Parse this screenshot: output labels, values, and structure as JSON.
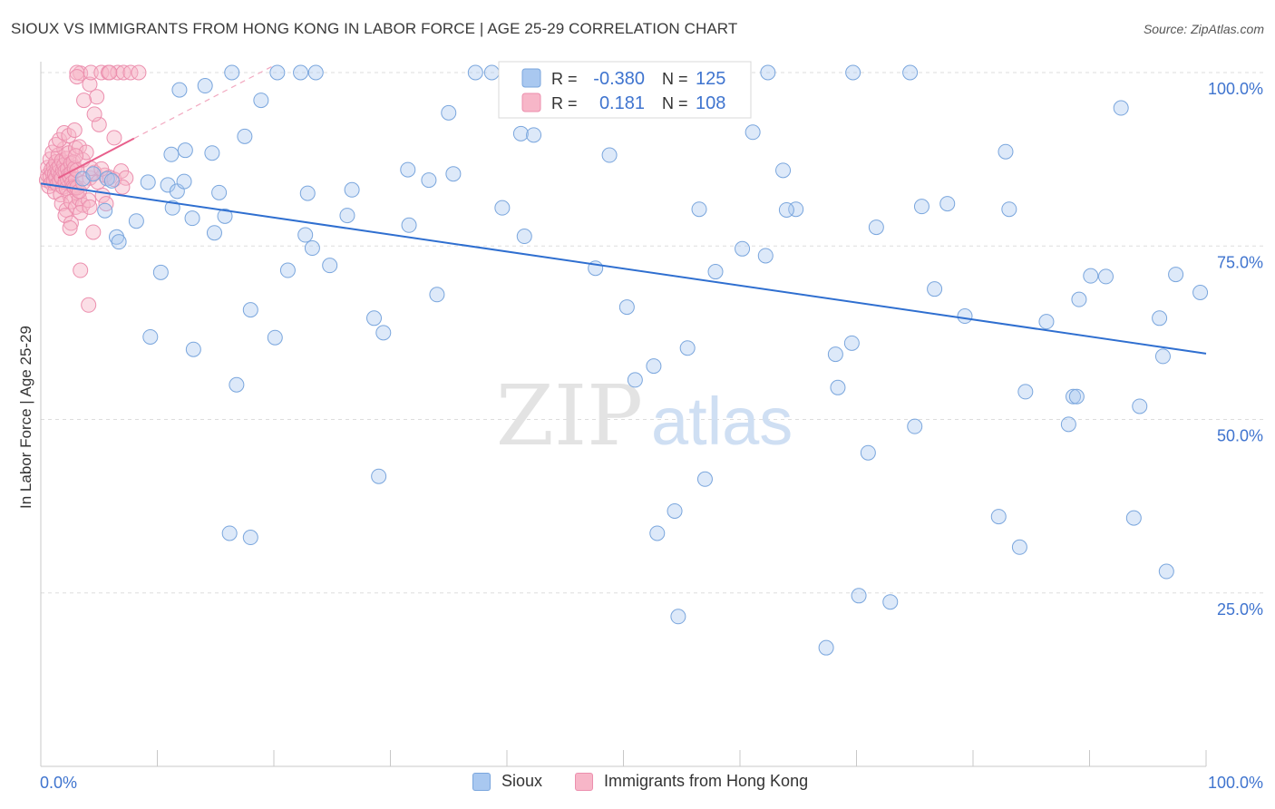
{
  "header": {
    "title": "SIOUX VS IMMIGRANTS FROM HONG KONG IN LABOR FORCE | AGE 25-29 CORRELATION CHART",
    "source": "Source: ZipAtlas.com"
  },
  "watermark": {
    "zip": "ZIP",
    "atlas": "atlas"
  },
  "colors": {
    "sioux_fill": "#a9c8f0",
    "sioux_stroke": "#7aa6dd",
    "sioux_line": "#2f6fd0",
    "hk_fill": "#f7b6c8",
    "hk_stroke": "#ec8fae",
    "hk_line": "#e8608c",
    "tick_label": "#3f74cf",
    "grid": "#dddddd"
  },
  "legend_top": {
    "rows": [
      {
        "r_label": "R =",
        "r_value": "-0.380",
        "n_label": "N =",
        "n_value": "125"
      },
      {
        "r_label": "R =",
        "r_value": "0.181",
        "n_label": "N =",
        "n_value": "108"
      }
    ]
  },
  "legend_bottom": {
    "sioux": "Sioux",
    "hk": "Immigrants from Hong Kong"
  },
  "chart_data": {
    "type": "scatter",
    "xlabel": "",
    "ylabel": "In Labor Force | Age 25-29",
    "xlim": [
      0,
      100
    ],
    "ylim": [
      0,
      105
    ],
    "x_tick_labels": [
      "0.0%",
      "100.0%"
    ],
    "y_tick_labels": [
      "25.0%",
      "50.0%",
      "75.0%",
      "100.0%"
    ],
    "y_ticks": [
      25,
      50,
      75,
      100
    ],
    "grid": true,
    "series": [
      {
        "name": "Sioux",
        "r": -0.38,
        "n": 125,
        "trend": {
          "x": [
            0,
            100
          ],
          "y": [
            84.0,
            59.5
          ]
        },
        "points": [
          [
            3.6,
            84.7
          ],
          [
            4.5,
            85.4
          ],
          [
            5.7,
            84.7
          ],
          [
            6.1,
            84.4
          ],
          [
            9.2,
            84.2
          ],
          [
            10.9,
            83.8
          ],
          [
            11.7,
            82.9
          ],
          [
            12.3,
            84.3
          ],
          [
            15.3,
            82.7
          ],
          [
            5.5,
            80.1
          ],
          [
            8.2,
            78.6
          ],
          [
            11.3,
            80.5
          ],
          [
            13.0,
            79.0
          ],
          [
            14.9,
            76.9
          ],
          [
            15.8,
            79.3
          ],
          [
            6.5,
            76.3
          ],
          [
            6.7,
            75.6
          ],
          [
            9.4,
            61.9
          ],
          [
            10.3,
            71.2
          ],
          [
            13.1,
            60.1
          ],
          [
            16.8,
            55.0
          ],
          [
            16.2,
            33.6
          ],
          [
            18.0,
            33.0
          ],
          [
            18.0,
            65.8
          ],
          [
            20.1,
            61.8
          ],
          [
            21.2,
            71.5
          ],
          [
            22.7,
            76.6
          ],
          [
            23.3,
            74.7
          ],
          [
            24.8,
            72.2
          ],
          [
            22.9,
            82.6
          ],
          [
            26.3,
            79.4
          ],
          [
            26.7,
            83.1
          ],
          [
            28.6,
            64.6
          ],
          [
            29.0,
            41.8
          ],
          [
            29.4,
            62.5
          ],
          [
            31.5,
            86.0
          ],
          [
            31.6,
            78.0
          ],
          [
            33.3,
            84.5
          ],
          [
            34.0,
            68.0
          ],
          [
            35.4,
            85.4
          ],
          [
            35.0,
            94.2
          ],
          [
            37.3,
            100.0
          ],
          [
            41.0,
            100.0
          ],
          [
            45.7,
            100.0
          ],
          [
            49.9,
            100.0
          ],
          [
            54.7,
            100.0
          ],
          [
            57.7,
            100.0
          ],
          [
            62.4,
            100.0
          ],
          [
            69.7,
            100.0
          ],
          [
            74.6,
            100.0
          ],
          [
            22.3,
            100.0
          ],
          [
            20.3,
            100.0
          ],
          [
            16.4,
            100.0
          ],
          [
            23.6,
            100.0
          ],
          [
            38.7,
            100.0
          ],
          [
            11.9,
            97.5
          ],
          [
            14.1,
            98.1
          ],
          [
            18.9,
            96.0
          ],
          [
            17.5,
            90.8
          ],
          [
            11.2,
            88.2
          ],
          [
            14.7,
            88.4
          ],
          [
            12.4,
            88.8
          ],
          [
            41.2,
            91.2
          ],
          [
            42.3,
            91.0
          ],
          [
            39.6,
            80.5
          ],
          [
            41.5,
            76.4
          ],
          [
            47.6,
            71.8
          ],
          [
            48.8,
            88.1
          ],
          [
            51.0,
            55.7
          ],
          [
            52.6,
            57.7
          ],
          [
            50.3,
            66.2
          ],
          [
            54.4,
            36.8
          ],
          [
            52.9,
            33.6
          ],
          [
            54.7,
            21.6
          ],
          [
            55.5,
            60.3
          ],
          [
            56.5,
            80.3
          ],
          [
            57.0,
            41.4
          ],
          [
            57.9,
            71.3
          ],
          [
            60.2,
            74.6
          ],
          [
            61.1,
            91.4
          ],
          [
            62.2,
            73.6
          ],
          [
            63.7,
            85.9
          ],
          [
            64.8,
            80.3
          ],
          [
            64.0,
            80.2
          ],
          [
            67.4,
            17.1
          ],
          [
            68.2,
            59.4
          ],
          [
            68.4,
            54.6
          ],
          [
            69.6,
            61.0
          ],
          [
            70.2,
            24.6
          ],
          [
            71.0,
            45.2
          ],
          [
            71.7,
            77.7
          ],
          [
            72.9,
            23.7
          ],
          [
            75.0,
            49.0
          ],
          [
            75.6,
            80.7
          ],
          [
            76.7,
            68.8
          ],
          [
            77.8,
            81.1
          ],
          [
            79.3,
            64.9
          ],
          [
            82.2,
            36.0
          ],
          [
            82.8,
            88.6
          ],
          [
            83.1,
            80.3
          ],
          [
            84.0,
            31.6
          ],
          [
            86.3,
            64.1
          ],
          [
            88.2,
            49.3
          ],
          [
            88.6,
            53.3
          ],
          [
            88.9,
            53.3
          ],
          [
            89.1,
            67.3
          ],
          [
            90.1,
            70.7
          ],
          [
            91.4,
            70.6
          ],
          [
            92.7,
            94.9
          ],
          [
            93.8,
            35.8
          ],
          [
            94.3,
            51.9
          ],
          [
            96.0,
            64.6
          ],
          [
            96.3,
            59.1
          ],
          [
            96.6,
            28.1
          ],
          [
            97.4,
            70.9
          ],
          [
            99.5,
            68.3
          ],
          [
            84.5,
            54.0
          ]
        ]
      },
      {
        "name": "Immigrants from Hong Kong",
        "r": 0.181,
        "n": 108,
        "trend": {
          "x": [
            1.5,
            8.0
          ],
          "y": [
            84.8,
            90.5
          ]
        },
        "points": [
          [
            0.5,
            84.5
          ],
          [
            0.6,
            85.2
          ],
          [
            0.6,
            86.3
          ],
          [
            0.7,
            83.6
          ],
          [
            0.8,
            85.0
          ],
          [
            0.8,
            87.5
          ],
          [
            0.9,
            84.1
          ],
          [
            0.9,
            86.0
          ],
          [
            1.0,
            85.5
          ],
          [
            1.0,
            88.5
          ],
          [
            1.1,
            84.3
          ],
          [
            1.1,
            86.4
          ],
          [
            1.2,
            85.4
          ],
          [
            1.2,
            82.8
          ],
          [
            1.3,
            87.1
          ],
          [
            1.3,
            84.8
          ],
          [
            1.4,
            86.1
          ],
          [
            1.4,
            83.9
          ],
          [
            1.5,
            85.6
          ],
          [
            1.5,
            88.1
          ],
          [
            1.6,
            84.4
          ],
          [
            1.6,
            86.5
          ],
          [
            1.7,
            85.1
          ],
          [
            1.7,
            82.4
          ],
          [
            1.8,
            87.3
          ],
          [
            1.8,
            84.8
          ],
          [
            1.9,
            85.9
          ],
          [
            1.9,
            83.5
          ],
          [
            2.0,
            86.7
          ],
          [
            2.0,
            89.0
          ],
          [
            2.1,
            84.2
          ],
          [
            2.1,
            85.8
          ],
          [
            2.2,
            87.6
          ],
          [
            2.2,
            83.3
          ],
          [
            2.3,
            86.1
          ],
          [
            2.3,
            84.6
          ],
          [
            2.4,
            85.3
          ],
          [
            2.4,
            88.4
          ],
          [
            2.5,
            84.9
          ],
          [
            2.5,
            82.2
          ],
          [
            2.6,
            86.9
          ],
          [
            2.6,
            85.5
          ],
          [
            2.7,
            84.1
          ],
          [
            2.8,
            87.1
          ],
          [
            2.8,
            83.6
          ],
          [
            2.9,
            86.2
          ],
          [
            3.0,
            84.6
          ],
          [
            3.0,
            89.1
          ],
          [
            3.1,
            85.9
          ],
          [
            3.1,
            82.7
          ],
          [
            1.3,
            89.6
          ],
          [
            1.6,
            90.3
          ],
          [
            2.0,
            91.3
          ],
          [
            2.4,
            90.9
          ],
          [
            2.9,
            91.7
          ],
          [
            3.3,
            89.3
          ],
          [
            1.8,
            81.1
          ],
          [
            2.2,
            80.2
          ],
          [
            2.6,
            81.4
          ],
          [
            3.0,
            80.6
          ],
          [
            3.3,
            81.8
          ],
          [
            3.6,
            80.9
          ],
          [
            4.1,
            81.6
          ],
          [
            4.2,
            84.8
          ],
          [
            4.6,
            85.6
          ],
          [
            3.6,
            87.4
          ],
          [
            3.9,
            88.5
          ],
          [
            4.3,
            86.2
          ],
          [
            4.9,
            84.2
          ],
          [
            5.5,
            85.2
          ],
          [
            5.9,
            84.9
          ],
          [
            6.3,
            84.6
          ],
          [
            6.9,
            85.8
          ],
          [
            7.3,
            84.8
          ],
          [
            5.2,
            86.1
          ],
          [
            2.1,
            79.4
          ],
          [
            2.6,
            78.3
          ],
          [
            3.4,
            79.8
          ],
          [
            4.2,
            80.6
          ],
          [
            5.3,
            82.3
          ],
          [
            5.6,
            81.1
          ],
          [
            2.9,
            83.4
          ],
          [
            3.1,
            83.4
          ],
          [
            3.3,
            82.9
          ],
          [
            3.6,
            84.1
          ],
          [
            6.3,
            90.6
          ],
          [
            5.0,
            92.5
          ],
          [
            4.6,
            94.0
          ],
          [
            4.8,
            96.5
          ],
          [
            3.7,
            96.0
          ],
          [
            4.2,
            98.3
          ],
          [
            3.4,
            99.9
          ],
          [
            3.1,
            100.0
          ],
          [
            4.3,
            100.0
          ],
          [
            5.2,
            100.0
          ],
          [
            5.8,
            100.0
          ],
          [
            6.6,
            100.0
          ],
          [
            7.1,
            100.0
          ],
          [
            7.7,
            100.0
          ],
          [
            8.4,
            100.0
          ],
          [
            4.5,
            77.0
          ],
          [
            3.4,
            71.5
          ],
          [
            4.1,
            66.5
          ],
          [
            3.0,
            88.0
          ],
          [
            2.5,
            77.6
          ],
          [
            7.0,
            83.5
          ],
          [
            5.9,
            100.0
          ],
          [
            3.1,
            99.4
          ]
        ]
      }
    ]
  }
}
